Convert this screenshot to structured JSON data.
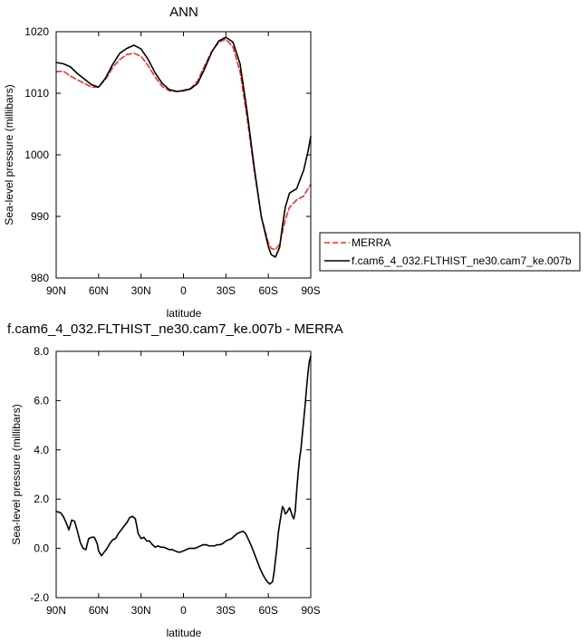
{
  "chart_data": [
    {
      "type": "line",
      "title": "ANN",
      "xlabel": "latitude",
      "ylabel": "Sea-level pressure (millibars)",
      "xlim": [
        90,
        -90
      ],
      "ylim": [
        980,
        1020
      ],
      "xticks": [
        {
          "value": 90,
          "label": "90N"
        },
        {
          "value": 60,
          "label": "60N"
        },
        {
          "value": 30,
          "label": "30N"
        },
        {
          "value": 0,
          "label": "0"
        },
        {
          "value": -30,
          "label": "30S"
        },
        {
          "value": -60,
          "label": "60S"
        },
        {
          "value": -90,
          "label": "90S"
        }
      ],
      "yticks": [
        {
          "value": 1020,
          "label": "1020"
        },
        {
          "value": 1010,
          "label": "1010"
        },
        {
          "value": 1000,
          "label": "1000"
        },
        {
          "value": 990,
          "label": "990"
        },
        {
          "value": 980,
          "label": "980"
        }
      ],
      "legend": "outside-right",
      "series": [
        {
          "name": "MERRA",
          "color": "#e8342c",
          "dashed": true,
          "x": [
            90,
            85,
            80,
            75,
            70,
            65,
            60,
            55,
            50,
            45,
            40,
            35,
            30,
            25,
            20,
            15,
            10,
            5,
            0,
            -5,
            -10,
            -15,
            -20,
            -25,
            -30,
            -35,
            -40,
            -45,
            -50,
            -55,
            -60,
            -62,
            -65,
            -68,
            -70,
            -72,
            -75,
            -80,
            -85,
            -88,
            -90
          ],
          "y": [
            1013.5,
            1013.6,
            1012.8,
            1012.2,
            1011.6,
            1011.0,
            1011.0,
            1012.3,
            1014.2,
            1015.5,
            1016.3,
            1016.5,
            1016.0,
            1014.5,
            1012.6,
            1011.1,
            1010.4,
            1010.3,
            1010.5,
            1010.8,
            1012.0,
            1014.5,
            1016.8,
            1018.3,
            1018.8,
            1017.5,
            1013.5,
            1006.0,
            997.5,
            990.0,
            985.7,
            984.8,
            984.6,
            985.5,
            987.5,
            989.5,
            991.5,
            992.7,
            993.3,
            994.5,
            995.2
          ]
        },
        {
          "name": "f.cam6_4_032.FLTHIST_ne30.cam7_ke.007b",
          "color": "#000000",
          "dashed": false,
          "x": [
            90,
            85,
            80,
            75,
            70,
            65,
            60,
            55,
            50,
            45,
            40,
            35,
            30,
            25,
            20,
            15,
            10,
            5,
            0,
            -5,
            -10,
            -15,
            -20,
            -25,
            -30,
            -35,
            -40,
            -45,
            -50,
            -55,
            -60,
            -62,
            -65,
            -68,
            -70,
            -72,
            -75,
            -80,
            -85,
            -88,
            -90
          ],
          "y": [
            1015.0,
            1014.8,
            1014.3,
            1013.2,
            1012.3,
            1011.4,
            1011.0,
            1012.5,
            1014.7,
            1016.5,
            1017.3,
            1017.8,
            1017.2,
            1015.5,
            1013.3,
            1011.6,
            1010.6,
            1010.3,
            1010.4,
            1010.7,
            1011.6,
            1014.0,
            1016.7,
            1018.5,
            1019.1,
            1018.3,
            1014.8,
            1007.0,
            998.0,
            990.0,
            985.1,
            983.8,
            983.4,
            985.0,
            988.5,
            991.5,
            993.8,
            994.5,
            997.5,
            1000.5,
            1003.0
          ]
        }
      ]
    },
    {
      "type": "line",
      "title": "f.cam6_4_032.FLTHIST_ne30.cam7_ke.007b - MERRA",
      "xlabel": "latitude",
      "ylabel": "Sea-level pressure (millibars)",
      "xlim": [
        90,
        -90
      ],
      "ylim": [
        -2.0,
        8.0
      ],
      "xticks": [
        {
          "value": 90,
          "label": "90N"
        },
        {
          "value": 60,
          "label": "60N"
        },
        {
          "value": 30,
          "label": "30N"
        },
        {
          "value": 0,
          "label": "0"
        },
        {
          "value": -30,
          "label": "30S"
        },
        {
          "value": -60,
          "label": "60S"
        },
        {
          "value": -90,
          "label": "90S"
        }
      ],
      "yticks": [
        {
          "value": 8.0,
          "label": "8.0"
        },
        {
          "value": 6.0,
          "label": "6.0"
        },
        {
          "value": 4.0,
          "label": "4.0"
        },
        {
          "value": 2.0,
          "label": "2.0"
        },
        {
          "value": 0.0,
          "label": "0.0"
        },
        {
          "value": -2.0,
          "label": "-2.0"
        }
      ],
      "series": [
        {
          "color": "#000000",
          "x": [
            90,
            87,
            85,
            83,
            81,
            79,
            77,
            75,
            73,
            71,
            69,
            67,
            65,
            63,
            61,
            60,
            58,
            56,
            54,
            52,
            50,
            48,
            46,
            44,
            42,
            40,
            38,
            36,
            34,
            32,
            30,
            28,
            26,
            24,
            22,
            20,
            18,
            16,
            14,
            12,
            10,
            8,
            6,
            4,
            2,
            0,
            -2,
            -4,
            -6,
            -8,
            -10,
            -12,
            -14,
            -16,
            -18,
            -20,
            -22,
            -24,
            -26,
            -28,
            -30,
            -32,
            -34,
            -36,
            -38,
            -40,
            -42,
            -44,
            -46,
            -48,
            -50,
            -52,
            -54,
            -56,
            -58,
            -60,
            -61,
            -62,
            -63,
            -64,
            -65,
            -66,
            -67,
            -68,
            -69,
            -70,
            -71,
            -72,
            -73,
            -74,
            -75,
            -76,
            -77,
            -78,
            -79,
            -80,
            -81,
            -82,
            -83,
            -84,
            -85,
            -86,
            -87,
            -88,
            -89,
            -90
          ],
          "y": [
            1.5,
            1.45,
            1.3,
            1.05,
            0.75,
            1.15,
            1.1,
            0.7,
            0.25,
            0.0,
            -0.05,
            0.4,
            0.45,
            0.45,
            0.2,
            -0.1,
            -0.3,
            -0.15,
            0.0,
            0.2,
            0.35,
            0.4,
            0.6,
            0.75,
            0.9,
            1.05,
            1.25,
            1.3,
            1.2,
            0.6,
            0.4,
            0.45,
            0.3,
            0.3,
            0.15,
            0.05,
            0.1,
            0.05,
            0.05,
            0.0,
            -0.05,
            -0.05,
            -0.1,
            -0.15,
            -0.15,
            -0.1,
            -0.05,
            0.0,
            0.0,
            0.0,
            0.05,
            0.1,
            0.15,
            0.15,
            0.1,
            0.1,
            0.1,
            0.15,
            0.15,
            0.2,
            0.3,
            0.35,
            0.4,
            0.5,
            0.6,
            0.65,
            0.7,
            0.6,
            0.35,
            0.1,
            -0.2,
            -0.5,
            -0.8,
            -1.05,
            -1.25,
            -1.4,
            -1.45,
            -1.4,
            -1.35,
            -1.0,
            -0.5,
            0.0,
            0.6,
            1.0,
            1.35,
            1.7,
            1.6,
            1.4,
            1.45,
            1.55,
            1.65,
            1.5,
            1.3,
            1.2,
            1.5,
            2.3,
            3.0,
            3.6,
            4.0,
            4.6,
            5.2,
            5.8,
            6.5,
            7.1,
            7.6,
            7.8
          ]
        }
      ]
    }
  ]
}
